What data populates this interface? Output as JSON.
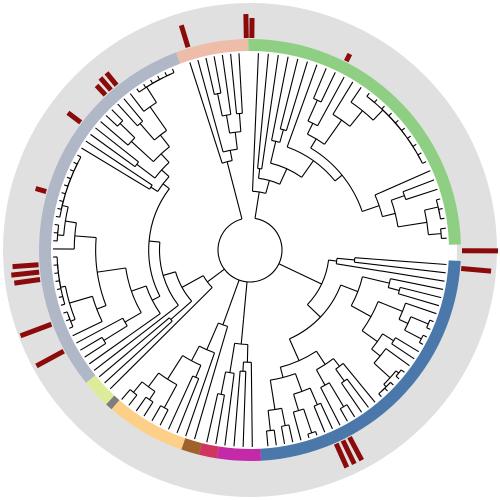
{
  "figure": {
    "colors": {
      "background": "#ffffff",
      "outer_ring": "#e0e0e0",
      "branch": "#000000",
      "marker": "#8b0a0a"
    },
    "clades": [
      {
        "name": "clade-green",
        "start": -0.5,
        "end": 88.5,
        "color": "#8fcf83"
      },
      {
        "name": "clade-blue",
        "start": 93.0,
        "end": 177.0,
        "color": "#4b78ab"
      },
      {
        "name": "clade-magenta",
        "start": 177.0,
        "end": 189.0,
        "color": "#c42aa8"
      },
      {
        "name": "clade-crimson",
        "start": 189.0,
        "end": 194.0,
        "color": "#d03560"
      },
      {
        "name": "clade-brown",
        "start": 194.0,
        "end": 199.0,
        "color": "#a0622c"
      },
      {
        "name": "clade-peach",
        "start": 199.0,
        "end": 221.0,
        "color": "#fdd08a"
      },
      {
        "name": "clade-grey-small",
        "start": 221.0,
        "end": 223.0,
        "color": "#7d7d7d"
      },
      {
        "name": "clade-pale-green",
        "start": 223.0,
        "end": 231.0,
        "color": "#dcec98"
      },
      {
        "name": "clade-grey-blue",
        "start": 231.0,
        "end": 339.5,
        "color": "#b0b8c8"
      },
      {
        "name": "clade-salmon",
        "start": 339.5,
        "end": 359.5,
        "color": "#edbdaa"
      }
    ],
    "markers": [
      {
        "angle": 0.5,
        "r_outer": 232
      },
      {
        "angle": 27.0,
        "r_outer": 220
      },
      {
        "angle": 90.2,
        "r_outer": 248
      },
      {
        "angle": 95.0,
        "r_outer": 242
      },
      {
        "angle": 152.0,
        "r_outer": 238
      },
      {
        "angle": 154.0,
        "r_outer": 238
      },
      {
        "angle": 156.0,
        "r_outer": 238
      },
      {
        "angle": 241.5,
        "r_outer": 243
      },
      {
        "angle": 249.5,
        "r_outer": 245
      },
      {
        "angle": 262.0,
        "r_outer": 238
      },
      {
        "angle": 264.0,
        "r_outer": 240
      },
      {
        "angle": 266.0,
        "r_outer": 238
      },
      {
        "angle": 286.0,
        "r_outer": 223
      },
      {
        "angle": 307.0,
        "r_outer": 228
      },
      {
        "angle": 317.0,
        "r_outer": 225
      },
      {
        "angle": 319.0,
        "r_outer": 228
      },
      {
        "angle": 321.0,
        "r_outer": 228
      },
      {
        "angle": 343.0,
        "r_outer": 235
      },
      {
        "angle": 359.0,
        "r_outer": 236
      }
    ]
  }
}
